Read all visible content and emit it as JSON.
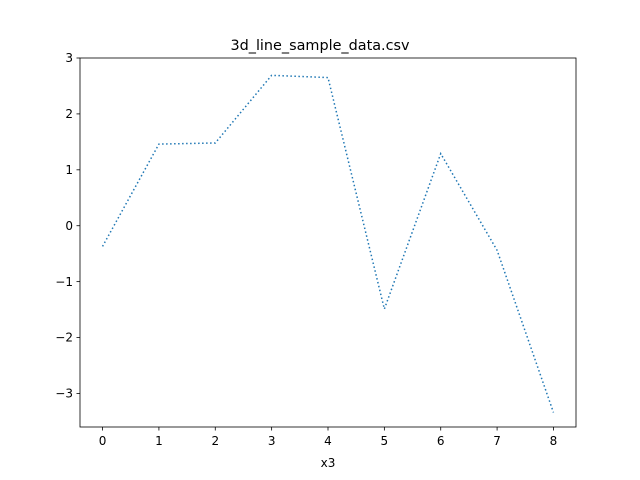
{
  "chart_data": {
    "type": "line",
    "title": "3d_line_sample_data.csv",
    "xlabel": "x3",
    "ylabel": "",
    "xlim": [
      -0.4,
      8.4
    ],
    "ylim": [
      -3.6,
      3.0
    ],
    "x_ticks": [
      0,
      1,
      2,
      3,
      4,
      5,
      6,
      7,
      8
    ],
    "x_tick_labels": [
      "0",
      "1",
      "2",
      "3",
      "4",
      "5",
      "6",
      "7",
      "8"
    ],
    "y_ticks": [
      3,
      2,
      1,
      0,
      -1,
      -2,
      -3
    ],
    "y_tick_labels": [
      "3",
      "2",
      "1",
      "0",
      "−1",
      "−2",
      "−3"
    ],
    "grid": false,
    "line_style": "dotted",
    "color": "#1f77b4",
    "series": [
      {
        "x": [
          0,
          1,
          2,
          3,
          4,
          5,
          6,
          7,
          8
        ],
        "values": [
          -0.37,
          1.46,
          1.48,
          2.69,
          2.65,
          -1.49,
          1.29,
          -0.44,
          -3.34
        ]
      }
    ]
  }
}
